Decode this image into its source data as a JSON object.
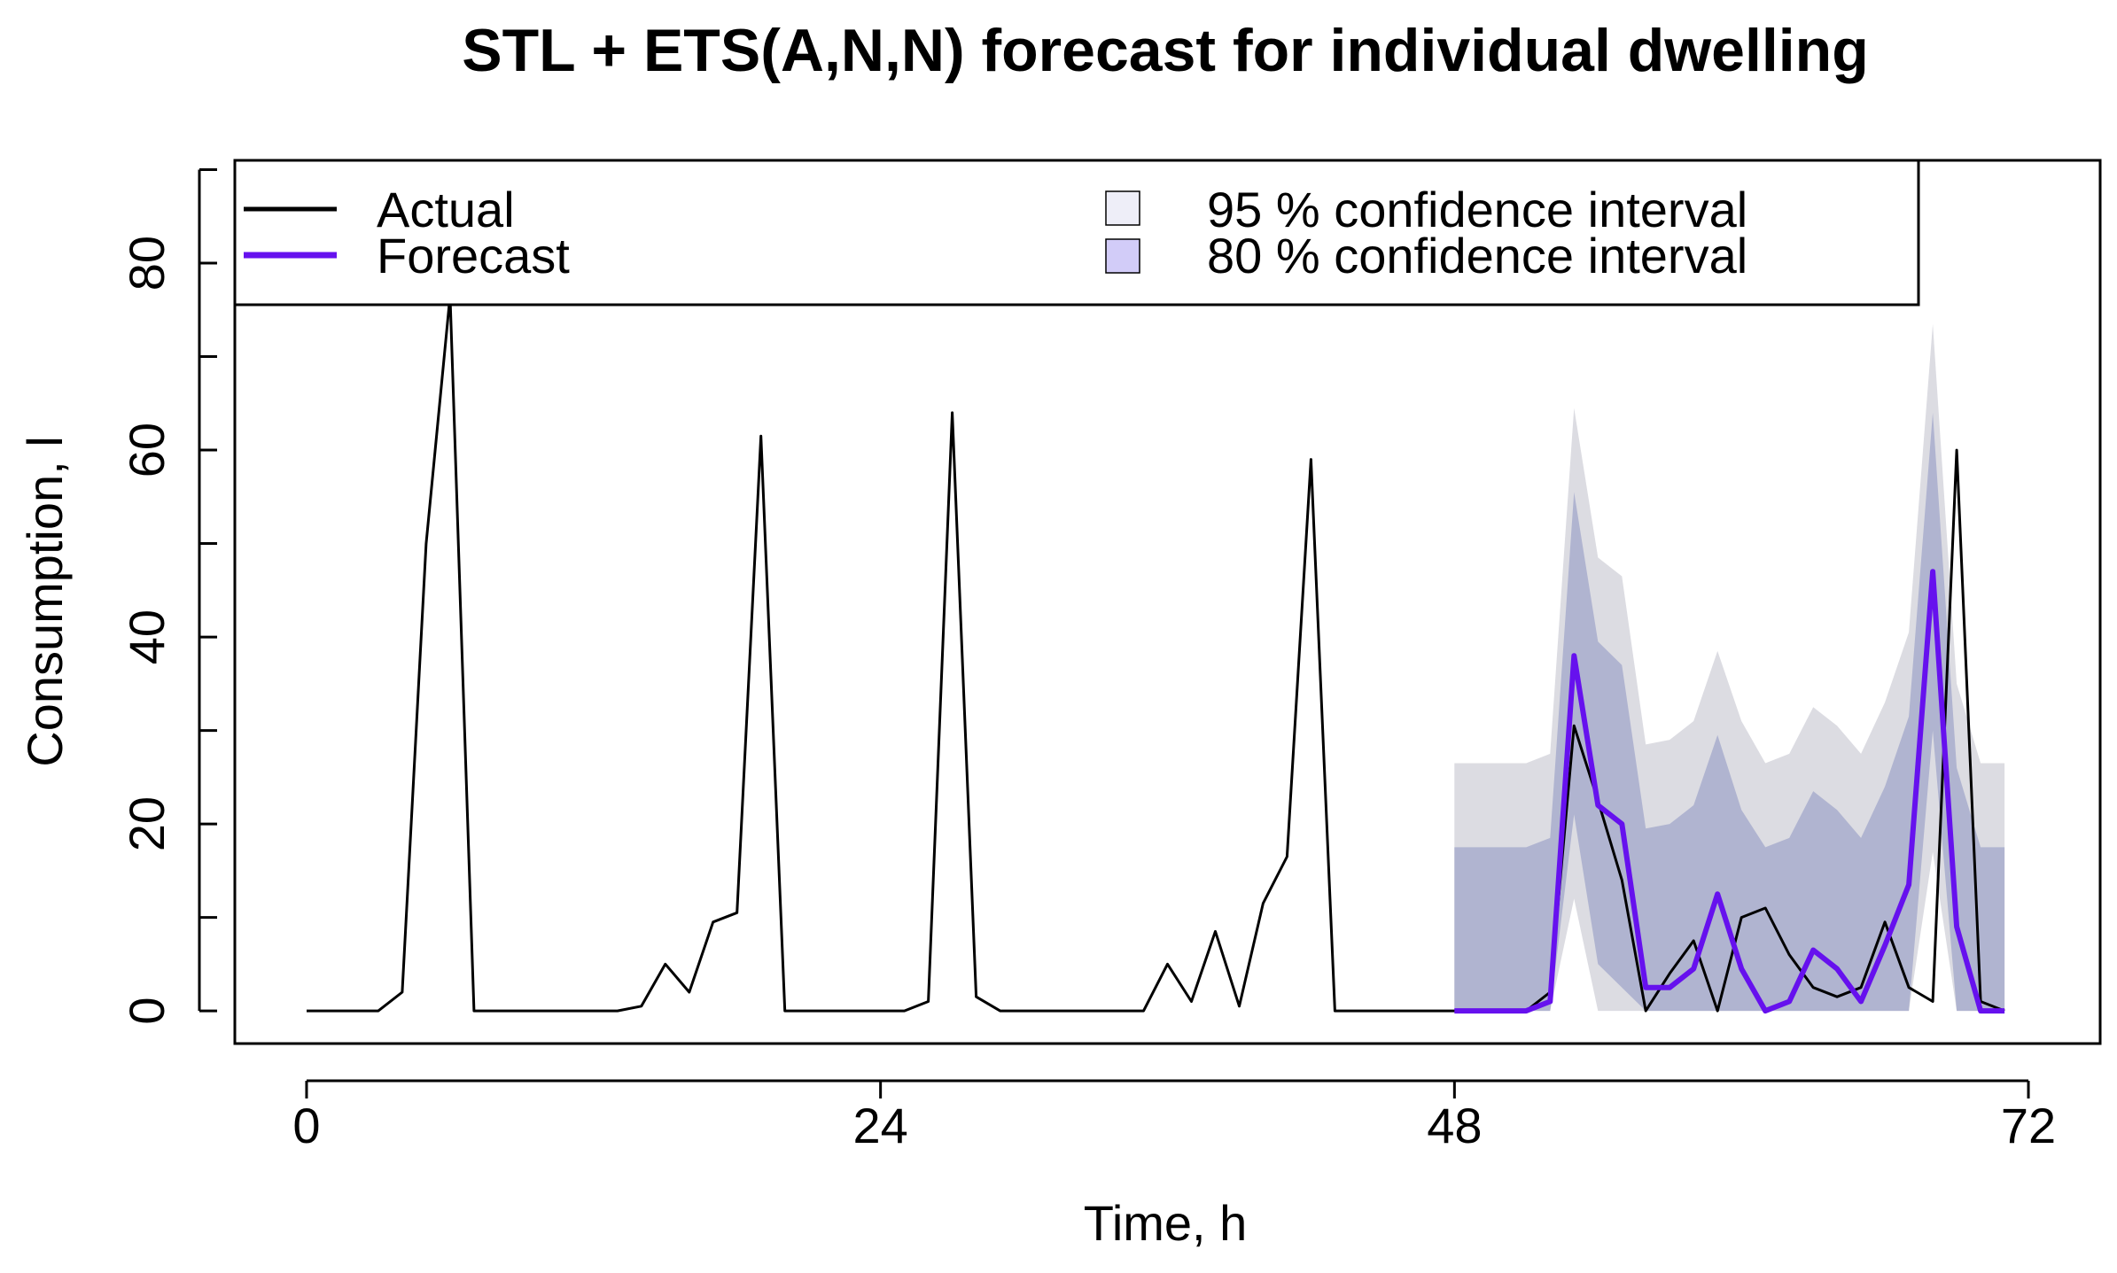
{
  "chart_data": {
    "type": "line",
    "title": "STL + ETS(A,N,N) forecast for individual dwelling",
    "xlabel": "Time, h",
    "ylabel": "Consumption, l",
    "xlim": [
      -3,
      75
    ],
    "ylim": [
      -3.5,
      91
    ],
    "xticks": [
      0,
      24,
      48,
      72
    ],
    "xtick_labels": [
      "0",
      "24",
      "48",
      "72"
    ],
    "yticks": [
      0,
      20,
      40,
      60,
      80
    ],
    "ytick_labels": [
      "0",
      "20",
      "40",
      "60",
      "80"
    ],
    "legend_position": "top",
    "legend": [
      {
        "label": "Actual",
        "kind": "line",
        "color": "#000000"
      },
      {
        "label": "Forecast",
        "kind": "line",
        "color": "#6611EE"
      },
      {
        "label": "95 % confidence interval",
        "kind": "box",
        "color": "#EEEEF8"
      },
      {
        "label": "80 % confidence interval",
        "kind": "box",
        "color": "#D2CCF8"
      }
    ],
    "colors": {
      "actual": "#000000",
      "forecast": "#6611EE",
      "ci95": "#DCDCE2",
      "ci80": "#B0B4D0"
    },
    "series": [
      {
        "name": "Actual",
        "x": [
          0,
          1,
          2,
          3,
          4,
          5,
          6,
          7,
          8,
          9,
          10,
          11,
          12,
          13,
          14,
          15,
          16,
          17,
          18,
          19,
          20,
          21,
          22,
          23,
          24,
          25,
          26,
          27,
          28,
          29,
          30,
          31,
          32,
          33,
          34,
          35,
          36,
          37,
          38,
          39,
          40,
          41,
          42,
          43,
          44,
          45,
          46,
          47,
          48,
          49,
          50,
          51,
          52,
          53,
          54,
          55,
          56,
          57,
          58,
          59,
          60,
          61,
          62,
          63,
          64,
          65,
          66,
          67,
          68,
          69,
          70,
          71
        ],
        "values": [
          0,
          0,
          0,
          0,
          2,
          50,
          76.5,
          0,
          0,
          0,
          0,
          0,
          0,
          0,
          0.5,
          5,
          2,
          9.5,
          10.5,
          61.5,
          0,
          0,
          0,
          0,
          0,
          0,
          1,
          64,
          1.5,
          0,
          0,
          0,
          0,
          0,
          0,
          0,
          5,
          1,
          8.5,
          0.5,
          11.5,
          16.5,
          59,
          0,
          0,
          0,
          0,
          0,
          0,
          0,
          0,
          0,
          2,
          30.5,
          22.5,
          14,
          0,
          4,
          7.5,
          0,
          10,
          11,
          6,
          2.5,
          1.5,
          2.5,
          9.5,
          2.5,
          1,
          60,
          1,
          0
        ]
      },
      {
        "name": "Forecast",
        "x": [
          48,
          49,
          50,
          51,
          52,
          53,
          54,
          55,
          56,
          57,
          58,
          59,
          60,
          61,
          62,
          63,
          64,
          65,
          66,
          67,
          68,
          69,
          70,
          71
        ],
        "values": [
          0,
          0,
          0,
          0,
          1,
          38,
          22,
          20,
          2.5,
          2.5,
          4.5,
          12.5,
          4.5,
          0,
          1,
          6.5,
          4.5,
          1,
          7,
          13.5,
          47,
          9,
          0,
          0
        ]
      },
      {
        "name": "95 % confidence interval",
        "x": [
          48,
          49,
          50,
          51,
          52,
          53,
          54,
          55,
          56,
          57,
          58,
          59,
          60,
          61,
          62,
          63,
          64,
          65,
          66,
          67,
          68,
          69,
          70,
          71
        ],
        "lower": [
          0,
          0,
          0,
          0,
          0,
          12,
          0,
          0,
          0,
          0,
          0,
          0,
          0,
          0,
          0,
          0,
          0,
          0,
          0,
          0,
          17,
          0,
          0,
          0
        ],
        "upper": [
          26.5,
          26.5,
          26.5,
          26.5,
          27.5,
          64.5,
          48.5,
          46.5,
          28.5,
          29,
          31,
          38.5,
          31,
          26.5,
          27.5,
          32.5,
          30.5,
          27.5,
          33,
          40.5,
          73.5,
          35,
          26.5,
          26.5
        ]
      },
      {
        "name": "80 % confidence interval",
        "x": [
          48,
          49,
          50,
          51,
          52,
          53,
          54,
          55,
          56,
          57,
          58,
          59,
          60,
          61,
          62,
          63,
          64,
          65,
          66,
          67,
          68,
          69,
          70,
          71
        ],
        "lower": [
          0,
          0,
          0,
          0,
          0,
          21,
          5,
          2.5,
          0,
          0,
          0,
          0,
          0,
          0,
          0,
          0,
          0,
          0,
          0,
          0,
          30,
          0,
          0,
          0
        ],
        "upper": [
          17.5,
          17.5,
          17.5,
          17.5,
          18.5,
          55.5,
          39.5,
          37,
          19.5,
          20,
          22,
          29.5,
          21.5,
          17.5,
          18.5,
          23.5,
          21.5,
          18.5,
          24,
          31.5,
          64,
          26,
          17.5,
          17.5
        ]
      }
    ]
  }
}
